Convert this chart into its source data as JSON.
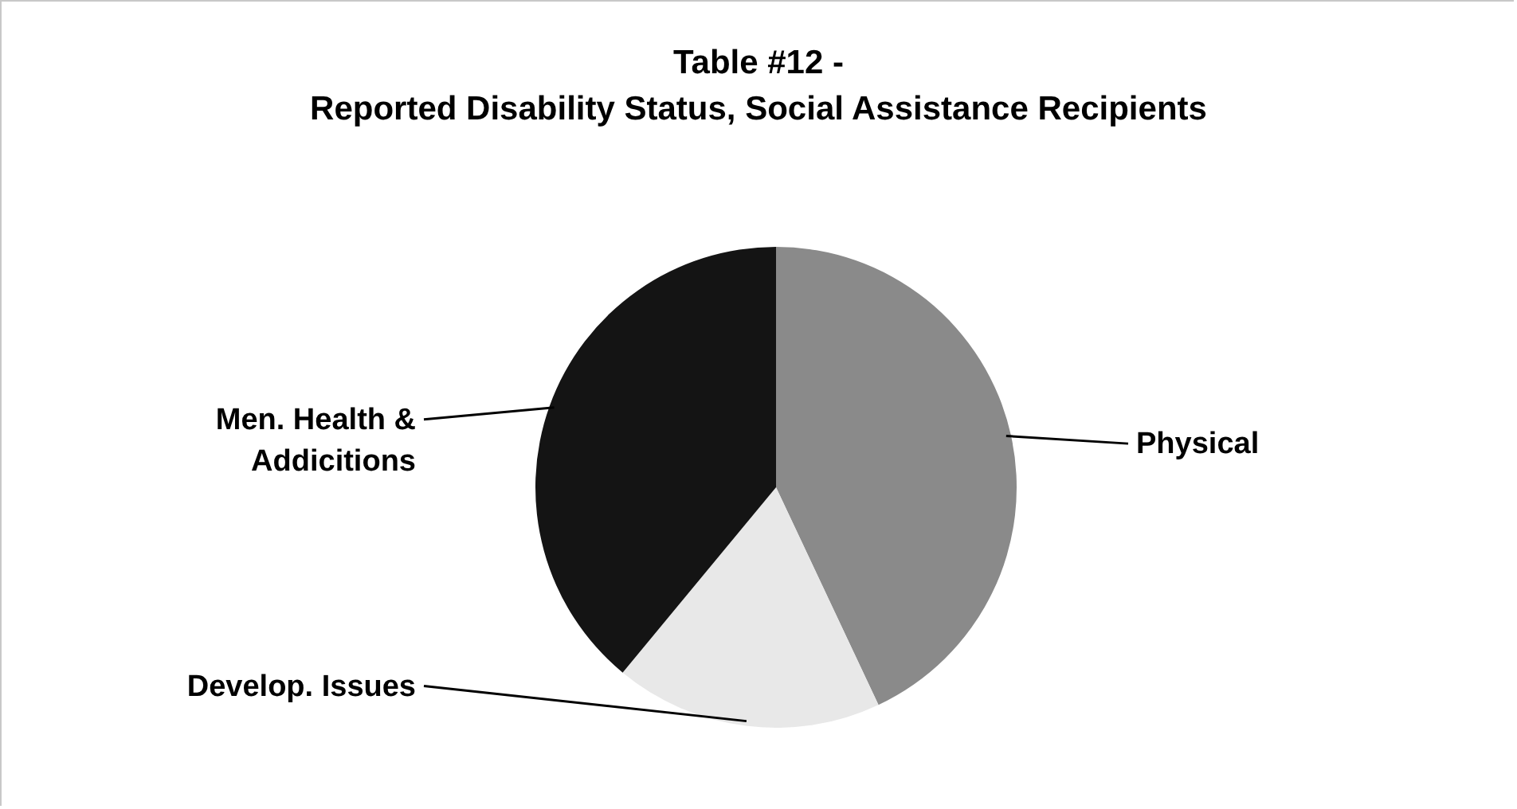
{
  "chart_data": {
    "type": "pie",
    "title": "Table #12 -",
    "subtitle": "Reported Disability Status, Social Assistance Recipients",
    "categories": [
      "Physical",
      "Develop. Issues",
      "Men. Health &\nAddicitions"
    ],
    "values": [
      43,
      18,
      39
    ],
    "colors": [
      "#8a8a8a",
      "#e8e8e8",
      "#141414"
    ],
    "legend": false
  }
}
